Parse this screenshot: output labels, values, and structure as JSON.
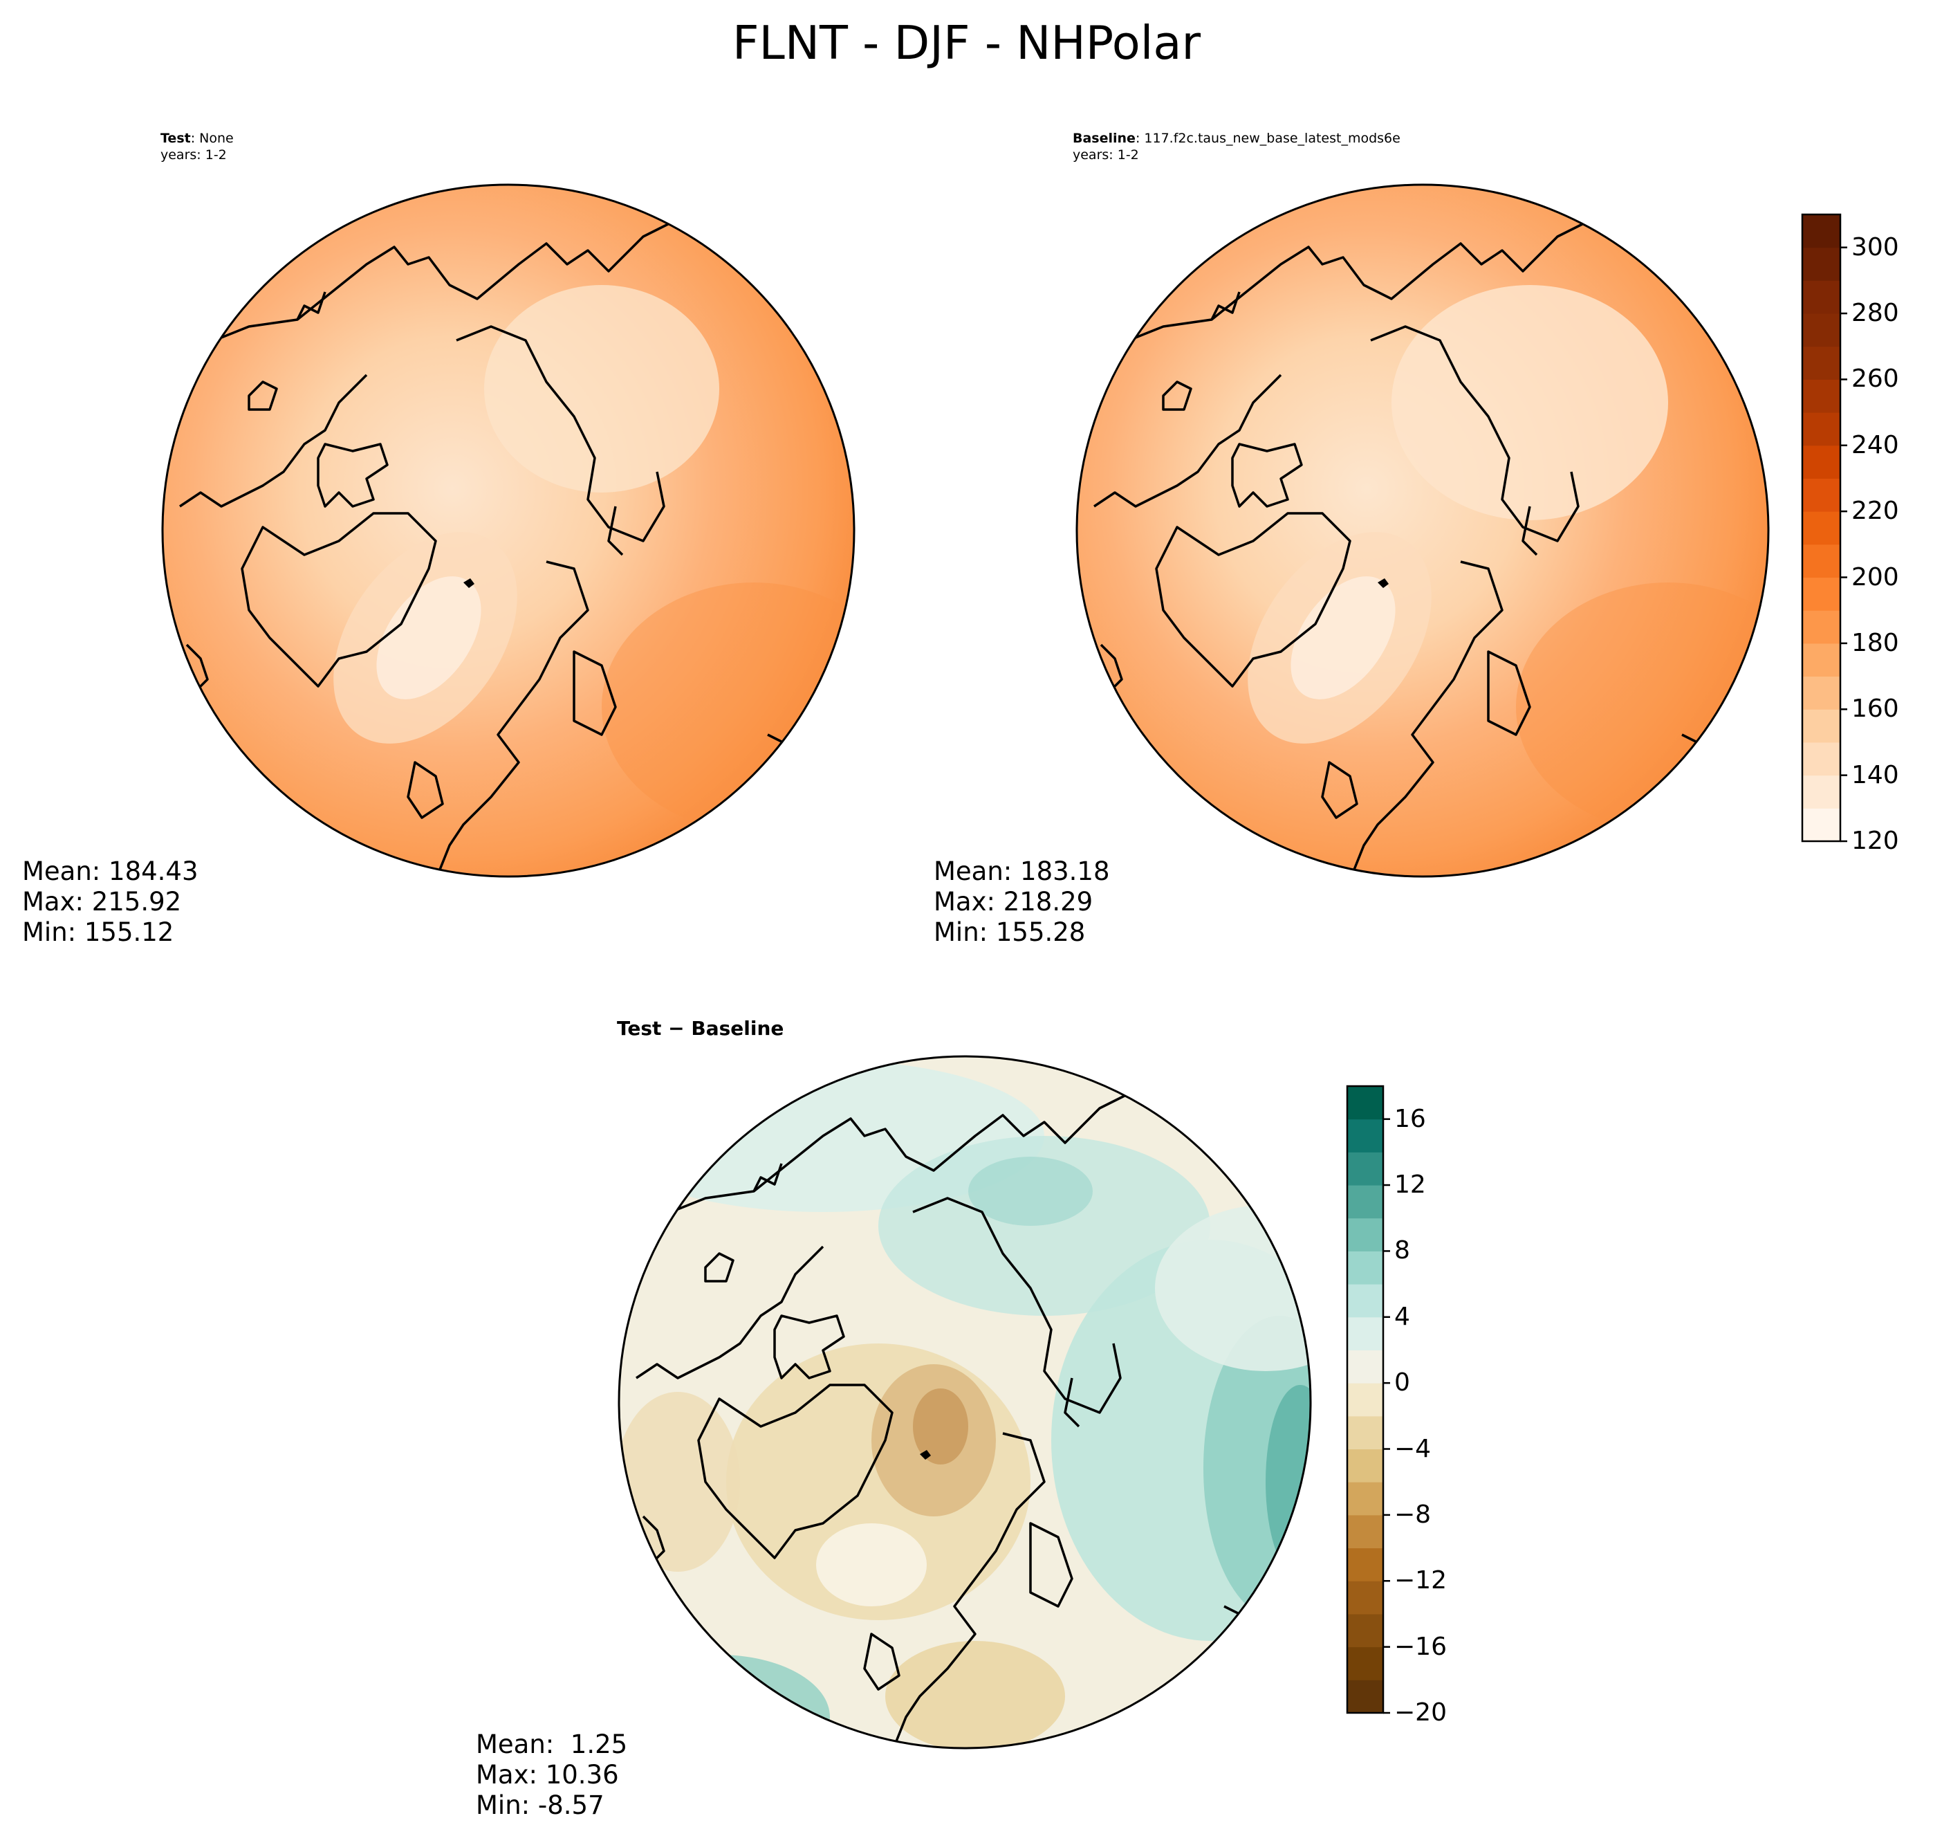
{
  "title": "FLNT - DJF - NHPolar",
  "panels": {
    "test": {
      "label": "Test",
      "name": "None",
      "years": "years: 1-2",
      "stats": {
        "mean": "Mean: 184.43",
        "max": "Max: 215.92",
        "min": "Min: 155.12"
      }
    },
    "baseline": {
      "label": "Baseline",
      "name": "117.f2c.taus_new_base_latest_mods6e",
      "years": "years: 1-2",
      "stats": {
        "mean": "Mean: 183.18",
        "max": "Max: 218.29",
        "min": "Min: 155.28"
      }
    },
    "diff": {
      "title": "Test − Baseline",
      "stats": {
        "mean": "Mean:  1.25",
        "max": "Max: 10.36",
        "min": "Min: -8.57"
      }
    }
  },
  "chart_data": [
    {
      "type": "heatmap",
      "projection": "north-polar-stereographic",
      "title": "Test: None",
      "subtitle": "years: 1-2",
      "stats": {
        "mean": 184.43,
        "max": 215.92,
        "min": 155.12
      },
      "colormap": "Oranges",
      "colorbar": {
        "range": [
          120,
          310
        ],
        "ticks": [
          120,
          140,
          160,
          180,
          200,
          220,
          240,
          260,
          280,
          300
        ],
        "levels": [
          120,
          130,
          140,
          150,
          160,
          170,
          180,
          190,
          200,
          210,
          220,
          230,
          240,
          250,
          260,
          270,
          280,
          290,
          300,
          310
        ]
      }
    },
    {
      "type": "heatmap",
      "projection": "north-polar-stereographic",
      "title": "Baseline: 117.f2c.taus_new_base_latest_mods6e",
      "subtitle": "years: 1-2",
      "stats": {
        "mean": 183.18,
        "max": 218.29,
        "min": 155.28
      },
      "colormap": "Oranges"
    },
    {
      "type": "heatmap",
      "projection": "north-polar-stereographic",
      "title": "Test − Baseline",
      "stats": {
        "mean": 1.25,
        "max": 10.36,
        "min": -8.57
      },
      "colormap": "BrBG",
      "colorbar": {
        "range": [
          -20,
          18
        ],
        "ticks": [
          -20,
          -16,
          -12,
          -8,
          -4,
          0,
          4,
          8,
          12,
          16
        ],
        "levels": [
          -20,
          -18,
          -16,
          -14,
          -12,
          -10,
          -8,
          -6,
          -4,
          -2,
          0,
          2,
          4,
          6,
          8,
          10,
          12,
          14,
          16,
          18
        ]
      }
    }
  ],
  "colorbars": {
    "main": {
      "ticks": [
        "120",
        "140",
        "160",
        "180",
        "200",
        "220",
        "240",
        "260",
        "280",
        "300"
      ],
      "colors": [
        "#fff5eb",
        "#fee9d4",
        "#fedcbb",
        "#fdcfa1",
        "#fdbd84",
        "#fdaa65",
        "#fd974a",
        "#fc8532",
        "#f5731f",
        "#ec620f",
        "#e0520a",
        "#d04501",
        "#b83c02",
        "#a63603",
        "#933004",
        "#862b04",
        "#7f2704",
        "#6e2103",
        "#601c02"
      ]
    },
    "diff": {
      "ticks": [
        "−20",
        "−16",
        "−12",
        "−8",
        "−4",
        "0",
        "4",
        "8",
        "12",
        "16"
      ],
      "colors": [
        "#613609",
        "#744207",
        "#885010",
        "#9d5e17",
        "#b26f1f",
        "#c38a3d",
        "#d3a65c",
        "#dfc17f",
        "#ead6a5",
        "#f3e8c9",
        "#f2f1e6",
        "#dcefea",
        "#bee5df",
        "#9bd6cc",
        "#76c1b4",
        "#52a89b",
        "#2f8f84",
        "#0f776d",
        "#00604f",
        "#013c30"
      ]
    }
  },
  "colors": {
    "diff_land_tint": "#f3e8c9",
    "diff_ocean_tint": "#dcefea"
  }
}
